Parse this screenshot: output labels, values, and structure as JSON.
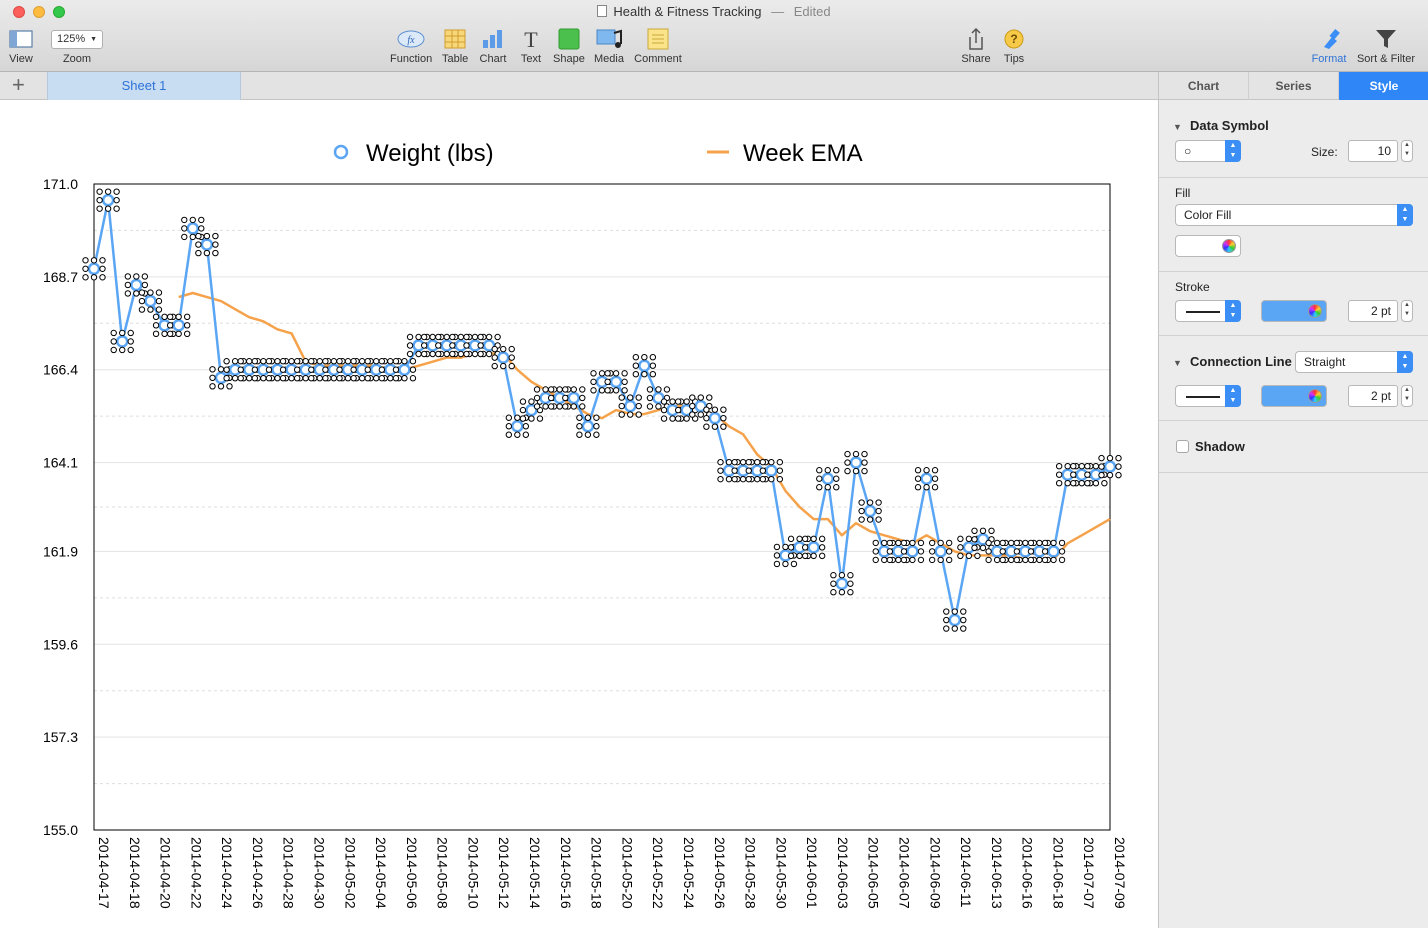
{
  "window": {
    "title": "Health & Fitness Tracking",
    "status": "Edited"
  },
  "toolbar": {
    "view_label": "View",
    "zoom_value": "125%",
    "zoom_label": "Zoom",
    "function_label": "Function",
    "table_label": "Table",
    "chart_label": "Chart",
    "text_label": "Text",
    "shape_label": "Shape",
    "media_label": "Media",
    "comment_label": "Comment",
    "share_label": "Share",
    "tips_label": "Tips",
    "format_label": "Format",
    "sort_filter_label": "Sort & Filter"
  },
  "sheets": {
    "add_icon": "plus-icon",
    "tabs": [
      "Sheet 1"
    ]
  },
  "inspector": {
    "tabs": [
      "Chart",
      "Series",
      "Style"
    ],
    "active_tab": "Style",
    "data_symbol": {
      "title": "Data Symbol",
      "symbol": "○",
      "size_label": "Size:",
      "size_value": "10"
    },
    "fill": {
      "label": "Fill",
      "type": "Color Fill",
      "color": "#ffffff"
    },
    "stroke": {
      "label": "Stroke",
      "width": "2 pt",
      "color": "#5aa6f4"
    },
    "connection_line": {
      "title": "Connection Line",
      "type": "Straight",
      "width": "2 pt",
      "color": "#5aa6f4"
    },
    "shadow": {
      "label": "Shadow",
      "checked": false
    }
  },
  "chart_data": {
    "type": "line",
    "legend": [
      {
        "name": "Weight (lbs)",
        "color": "#5aa6f4",
        "marker": "circle"
      },
      {
        "name": "Week EMA",
        "color": "#f5a24b",
        "marker": "line"
      }
    ],
    "legend_position": "top",
    "yticks": [
      "171.0",
      "168.7",
      "166.4",
      "164.1",
      "161.9",
      "159.6",
      "157.3",
      "155.0"
    ],
    "ylim": [
      155.0,
      171.0
    ],
    "xticks": [
      "2014-04-17",
      "2014-04-18",
      "2014-04-20",
      "2014-04-22",
      "2014-04-24",
      "2014-04-26",
      "2014-04-28",
      "2014-04-30",
      "2014-05-02",
      "2014-05-04",
      "2014-05-06",
      "2014-05-08",
      "2014-05-10",
      "2014-05-12",
      "2014-05-14",
      "2014-05-16",
      "2014-05-18",
      "2014-05-20",
      "2014-05-22",
      "2014-05-24",
      "2014-05-26",
      "2014-05-28",
      "2014-05-30",
      "2014-06-01",
      "2014-06-03",
      "2014-06-05",
      "2014-06-07",
      "2014-06-09",
      "2014-06-11",
      "2014-06-13",
      "2014-06-16",
      "2014-06-18",
      "2014-07-07",
      "2014-07-09"
    ],
    "grid": "horizontal dashed",
    "series": [
      {
        "name": "Weight (lbs)",
        "values": [
          168.9,
          170.6,
          167.1,
          168.5,
          168.1,
          167.5,
          167.5,
          169.9,
          169.5,
          166.2,
          166.4,
          166.4,
          166.4,
          166.4,
          166.4,
          166.4,
          166.4,
          166.4,
          166.4,
          166.4,
          166.4,
          166.4,
          166.4,
          167.0,
          167.0,
          167.0,
          167.0,
          167.0,
          167.0,
          166.7,
          165.0,
          165.4,
          165.7,
          165.7,
          165.7,
          165.0,
          166.1,
          166.1,
          165.5,
          166.5,
          165.7,
          165.4,
          165.4,
          165.5,
          165.2,
          163.9,
          163.9,
          163.9,
          163.9,
          161.8,
          162.0,
          162.0,
          163.7,
          161.1,
          164.1,
          162.9,
          161.9,
          161.9,
          161.9,
          163.7,
          161.9,
          160.2,
          162.0,
          162.2,
          161.9,
          161.9,
          161.9,
          161.9,
          161.9,
          163.8,
          163.8,
          163.8,
          164.0
        ],
        "color": "#5aa6f4"
      },
      {
        "name": "Week EMA",
        "values": [
          null,
          null,
          null,
          null,
          null,
          null,
          168.2,
          168.3,
          168.2,
          168.1,
          167.9,
          167.7,
          167.6,
          167.4,
          167.3,
          166.6,
          166.5,
          166.5,
          166.5,
          166.5,
          166.5,
          166.4,
          166.4,
          166.5,
          166.6,
          166.7,
          166.7,
          166.8,
          166.8,
          166.8,
          166.4,
          166.1,
          165.9,
          165.7,
          165.5,
          165.3,
          165.2,
          165.4,
          165.3,
          165.3,
          165.4,
          165.5,
          165.5,
          165.4,
          165.3,
          165.0,
          164.8,
          164.3,
          164.0,
          163.4,
          163.0,
          162.7,
          162.7,
          162.3,
          162.6,
          162.4,
          162.3,
          162.2,
          162.1,
          162.3,
          162.1,
          161.9,
          161.8,
          161.8,
          161.8,
          161.8,
          161.7,
          161.7,
          161.7,
          162.1,
          162.3,
          162.5,
          162.7
        ],
        "color": "#f5a24b"
      }
    ]
  }
}
